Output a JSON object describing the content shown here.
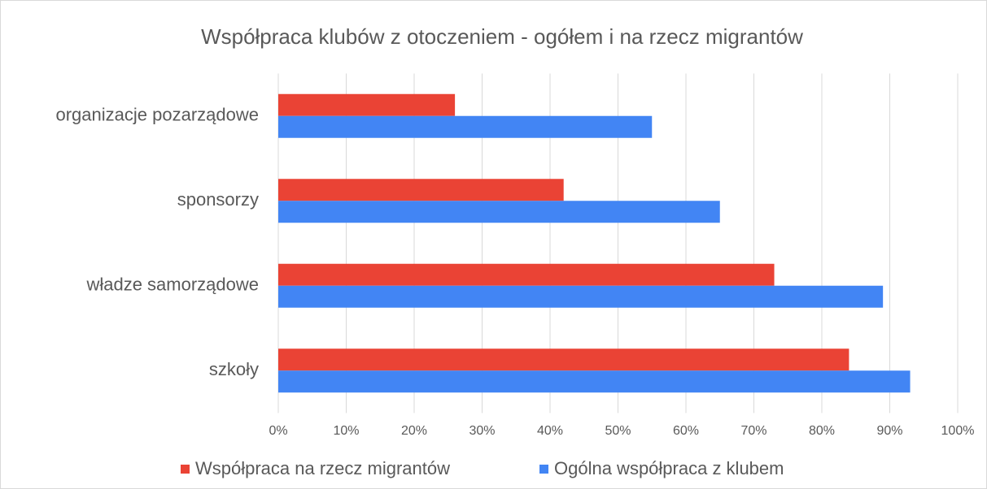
{
  "chart_data": {
    "type": "bar",
    "orientation": "horizontal",
    "title": "Współpraca klubów z otoczeniem  - ogółem i na rzecz migrantów",
    "categories": [
      "organizacje pozarządowe",
      "sponsorzy",
      "władze samorządowe",
      "szkoły"
    ],
    "series": [
      {
        "name": "Współpraca na rzecz migrantów",
        "color": "#ea4335",
        "values": [
          26,
          42,
          73,
          84
        ]
      },
      {
        "name": "Ogólna współpraca z klubem",
        "color": "#4285f4",
        "values": [
          55,
          65,
          89,
          93
        ]
      }
    ],
    "xlim": [
      0,
      100
    ],
    "xticks": [
      {
        "value": 0,
        "label": "0%"
      },
      {
        "value": 10,
        "label": "10%"
      },
      {
        "value": 20,
        "label": "20%"
      },
      {
        "value": 30,
        "label": "30%"
      },
      {
        "value": 40,
        "label": "40%"
      },
      {
        "value": 50,
        "label": "50%"
      },
      {
        "value": 60,
        "label": "60%"
      },
      {
        "value": 70,
        "label": "70%"
      },
      {
        "value": 80,
        "label": "80%"
      },
      {
        "value": 90,
        "label": "90%"
      },
      {
        "value": 100,
        "label": "100%"
      }
    ],
    "grid": true,
    "legend": "bottom"
  }
}
